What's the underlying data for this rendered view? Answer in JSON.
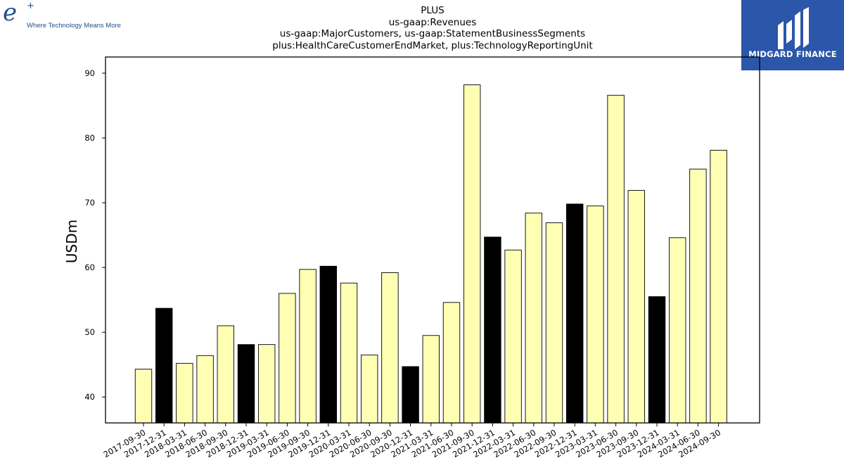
{
  "branding": {
    "left_logo_mark": "e",
    "left_logo_plus": "+",
    "left_tagline": "Where Technology Means More",
    "right_brand": "MIDGARD FINANCE",
    "right_bg_color": "#2b56a9",
    "left_color": "#1f4f8f"
  },
  "chart_data": {
    "type": "bar",
    "title_lines": [
      "PLUS",
      "us-gaap:Revenues",
      "us-gaap:MajorCustomers, us-gaap:StatementBusinessSegments",
      "plus:HealthCareCustomerEndMarket, plus:TechnologyReportingUnit"
    ],
    "xlabel": "",
    "ylabel": "USDm",
    "ylim": [
      36,
      92.5
    ],
    "yticks": [
      40,
      50,
      60,
      70,
      80,
      90
    ],
    "grid": false,
    "legend": "none",
    "colors": {
      "normal": "#ffffb3",
      "year_end": "#000000",
      "edge": "#000000"
    },
    "categories": [
      "2017-09-30",
      "2017-12-31",
      "2018-03-31",
      "2018-06-30",
      "2018-09-30",
      "2018-12-31",
      "2019-03-31",
      "2019-06-30",
      "2019-09-30",
      "2019-12-31",
      "2020-03-31",
      "2020-06-30",
      "2020-09-30",
      "2020-12-31",
      "2021-03-31",
      "2021-06-30",
      "2021-09-30",
      "2021-12-31",
      "2022-03-31",
      "2022-06-30",
      "2022-09-30",
      "2022-12-31",
      "2023-03-31",
      "2023-06-30",
      "2023-09-30",
      "2023-12-31",
      "2024-03-31",
      "2024-06-30",
      "2024-09-30"
    ],
    "values": [
      44.3,
      53.7,
      45.2,
      46.4,
      51.0,
      48.1,
      48.1,
      56.0,
      59.7,
      60.2,
      57.6,
      46.5,
      59.2,
      44.7,
      49.5,
      54.6,
      88.2,
      64.7,
      62.7,
      68.4,
      66.9,
      69.8,
      69.5,
      86.6,
      71.9,
      55.5,
      64.6,
      75.2,
      78.1
    ],
    "highlight": [
      false,
      true,
      false,
      false,
      false,
      true,
      false,
      false,
      false,
      true,
      false,
      false,
      false,
      true,
      false,
      false,
      false,
      true,
      false,
      false,
      false,
      true,
      false,
      false,
      false,
      true,
      false,
      false,
      false
    ]
  }
}
